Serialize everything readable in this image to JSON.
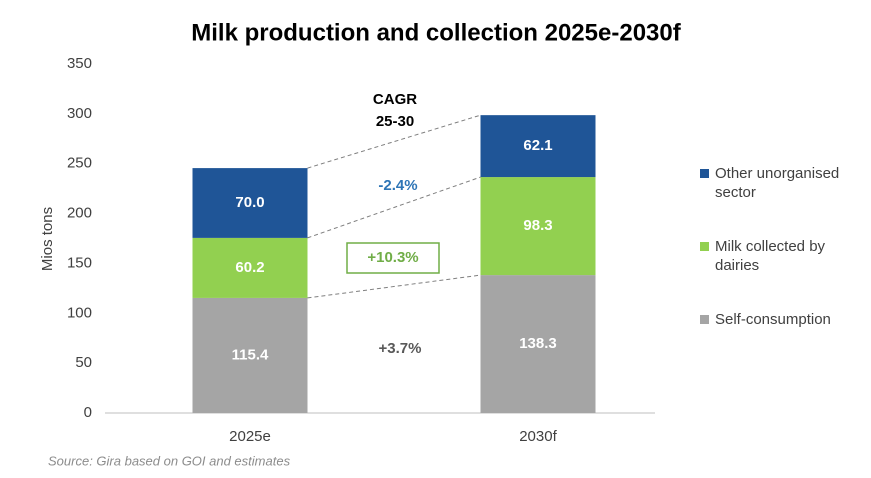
{
  "chart_data": {
    "type": "stacked-bar",
    "title": "Milk production and collection 2025e-2030f",
    "y_label": "Mios tons",
    "source": "Source: Gira based on GOI and estimates",
    "categories": [
      "2025e",
      "2030f"
    ],
    "series": [
      {
        "name": "Self-consumption",
        "color": "#a5a5a5",
        "values": [
          115.4,
          138.3
        ],
        "value_labels": [
          "115.4",
          "138.3"
        ]
      },
      {
        "name": "Milk collected by dairies",
        "color": "#92d050",
        "values": [
          60.2,
          98.3
        ],
        "value_labels": [
          "60.2",
          "98.3"
        ]
      },
      {
        "name": "Other unorganised sector",
        "color": "#1f5597",
        "values": [
          70,
          62.1
        ],
        "value_labels": [
          "70.0",
          "62.1"
        ]
      }
    ],
    "ylim": [
      0,
      350
    ],
    "yticks": [
      0,
      50,
      100,
      150,
      200,
      250,
      300,
      350
    ],
    "cagr_label": [
      "CAGR",
      "25-30"
    ],
    "annotations": [
      {
        "text": "-2.4%",
        "color": "#2e75b6"
      },
      {
        "text": "+10.3%",
        "color": "#70ad47",
        "boxed": true
      },
      {
        "text": "+3.7%",
        "color": "#595959"
      }
    ]
  }
}
